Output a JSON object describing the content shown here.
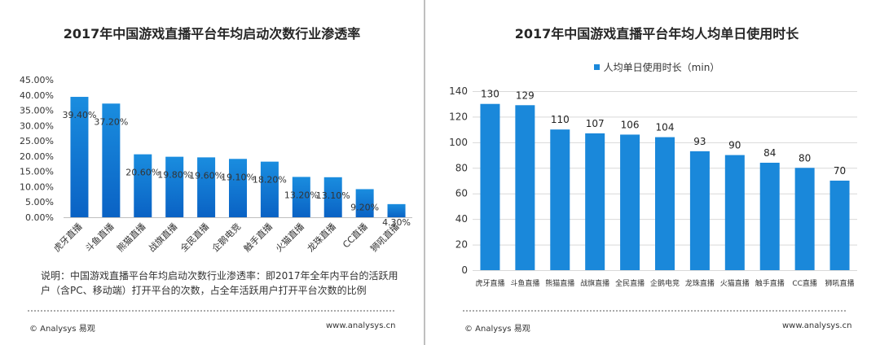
{
  "left_panel": {
    "title": "2017年中国游戏直播平台年均启动次数行业渗透率",
    "note": "说明：中国游戏直播平台年均启动次数行业渗透率：即2017年全年内平台的活跃用户（含PC、移动端）打开平台的次数，占全年活跃用户打开平台次数的比例",
    "brand": "© Analysys 易观",
    "site": "www.analysys.cn"
  },
  "right_panel": {
    "title": "2017年中国游戏直播平台年均人均单日使用时长",
    "brand": "© Analysys 易观",
    "site": "www.analysys.cn"
  },
  "colors": {
    "bar_top": "#1a8ddf",
    "bar_bottom": "#0a62c4",
    "bar_flat": "#1a88da",
    "grid": "#d9d9d9"
  },
  "chart_data": [
    {
      "type": "bar",
      "title": "2017年中国游戏直播平台年均启动次数行业渗透率",
      "categories": [
        "虎牙直播",
        "斗鱼直播",
        "熊猫直播",
        "战旗直播",
        "全民直播",
        "企鹅电竞",
        "触手直播",
        "火猫直播",
        "龙珠直播",
        "CC直播",
        "狮吼直播"
      ],
      "values": [
        39.4,
        37.2,
        20.6,
        19.8,
        19.6,
        19.1,
        18.2,
        13.2,
        13.1,
        9.2,
        4.3
      ],
      "data_labels": [
        "39.40%",
        "37.20%",
        "20.60%",
        "19.80%",
        "19.60%",
        "19.10%",
        "18.20%",
        "13.20%",
        "13.10%",
        "9.20%",
        "4.30%"
      ],
      "yticks": [
        "0.00%",
        "5.00%",
        "10.00%",
        "15.00%",
        "20.00%",
        "25.00%",
        "30.00%",
        "35.00%",
        "40.00%",
        "45.00%"
      ],
      "ylim": [
        0,
        45
      ],
      "grid": false,
      "legend": "none"
    },
    {
      "type": "bar",
      "title": "2017年中国游戏直播平台年均人均单日使用时长",
      "categories": [
        "虎牙直播",
        "斗鱼直播",
        "熊猫直播",
        "战旗直播",
        "全民直播",
        "企鹅电竞",
        "龙珠直播",
        "火猫直播",
        "触手直播",
        "CC直播",
        "狮吼直播"
      ],
      "series": [
        {
          "name": "人均单日使用时长（min）",
          "values": [
            130,
            129,
            110,
            107,
            106,
            104,
            93,
            90,
            84,
            80,
            70
          ]
        }
      ],
      "yticks": [
        "0",
        "20",
        "40",
        "60",
        "80",
        "100",
        "120",
        "140"
      ],
      "ylim": [
        0,
        140
      ],
      "grid": true,
      "legend": "top"
    }
  ]
}
